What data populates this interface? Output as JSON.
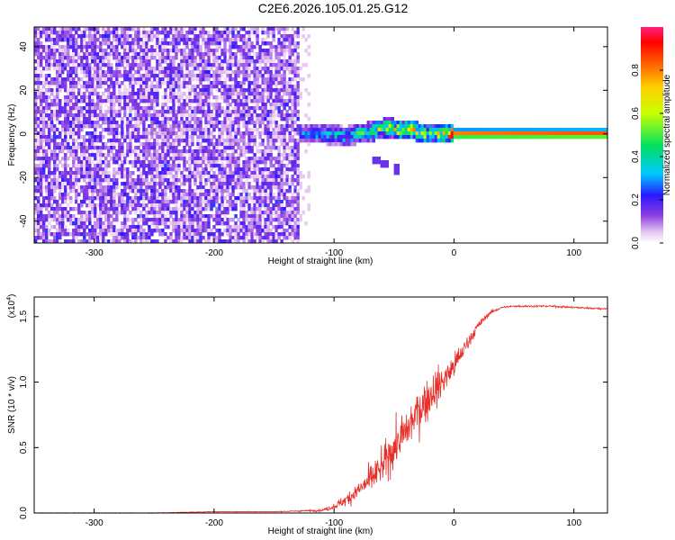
{
  "title": "C2E6.2026.105.01.25.G12",
  "colors": {
    "snr_line": "#e8302a",
    "background": "#ffffff",
    "axis": "#000000"
  },
  "chart_data": [
    {
      "type": "heatmap",
      "name": "spectrogram",
      "xlabel": "Height of straight line (km)",
      "ylabel": "Frequency (Hz)",
      "xlim": [
        -350,
        128
      ],
      "ylim": [
        -50,
        49
      ],
      "x_ticks": [
        -300,
        -200,
        -100,
        0,
        100
      ],
      "x_tick_labels": [
        "-300",
        "-200",
        "-100",
        "0",
        "100"
      ],
      "y_ticks": [
        -40,
        -20,
        0,
        20,
        40
      ],
      "y_tick_labels": [
        "-40",
        "-20",
        "0",
        "20",
        "40"
      ],
      "noise_region_x": [
        -350,
        -130
      ],
      "noise_level": 0.15,
      "signal_track": {
        "x": [
          -130,
          -110,
          -90,
          -70,
          -55,
          -45,
          -35,
          -25,
          -15,
          0,
          128
        ],
        "freq_hz": [
          0,
          0,
          -1,
          1,
          3,
          2,
          2,
          0,
          0,
          0,
          0
        ],
        "amplitude": [
          0.25,
          0.3,
          0.35,
          0.45,
          0.55,
          0.6,
          0.6,
          0.55,
          0.5,
          0.9,
          0.95
        ]
      },
      "outlier_points": [
        {
          "x": -65,
          "freq_hz": -12
        },
        {
          "x": -58,
          "freq_hz": -14
        },
        {
          "x": -48,
          "freq_hz": -16
        }
      ],
      "colorbar": {
        "label": "Normalized spectral amplitude",
        "range": [
          0,
          1
        ],
        "ticks": [
          0.0,
          0.2,
          0.4,
          0.6,
          0.8
        ],
        "tick_labels": [
          "0.0",
          "0.2",
          "0.4",
          "0.6",
          "0.8"
        ]
      }
    },
    {
      "type": "line",
      "name": "snr",
      "xlabel": "Height of straight line (km)",
      "ylabel": "SNR (10 * v/v)",
      "y_multiplier": "(x10",
      "y_multiplier_exp": "4",
      "y_multiplier_close": ")",
      "xlim": [
        -350,
        128
      ],
      "ylim": [
        0,
        1.65
      ],
      "x_ticks": [
        -300,
        -200,
        -100,
        0,
        100
      ],
      "x_tick_labels": [
        "-300",
        "-200",
        "-100",
        "0",
        "100"
      ],
      "y_ticks": [
        0.0,
        0.5,
        1.0,
        1.5
      ],
      "y_tick_labels": [
        "0.0",
        "0.5",
        "1.0",
        "1.5"
      ],
      "series": [
        {
          "name": "SNR",
          "x": [
            -350,
            -300,
            -250,
            -200,
            -150,
            -110,
            -100,
            -90,
            -80,
            -70,
            -60,
            -50,
            -40,
            -30,
            -20,
            -10,
            0,
            10,
            20,
            30,
            40,
            50,
            60,
            80,
            100,
            128
          ],
          "y": [
            0.0,
            0.0,
            0.0,
            0.01,
            0.01,
            0.02,
            0.05,
            0.1,
            0.17,
            0.25,
            0.35,
            0.5,
            0.62,
            0.78,
            0.9,
            1.0,
            1.12,
            1.28,
            1.43,
            1.53,
            1.57,
            1.58,
            1.58,
            1.58,
            1.57,
            1.56
          ],
          "noise": [
            0.003,
            0.003,
            0.003,
            0.003,
            0.003,
            0.01,
            0.03,
            0.06,
            0.1,
            0.14,
            0.17,
            0.2,
            0.22,
            0.22,
            0.2,
            0.17,
            0.13,
            0.08,
            0.04,
            0.02,
            0.01,
            0.01,
            0.01,
            0.01,
            0.01,
            0.01
          ]
        }
      ]
    }
  ]
}
